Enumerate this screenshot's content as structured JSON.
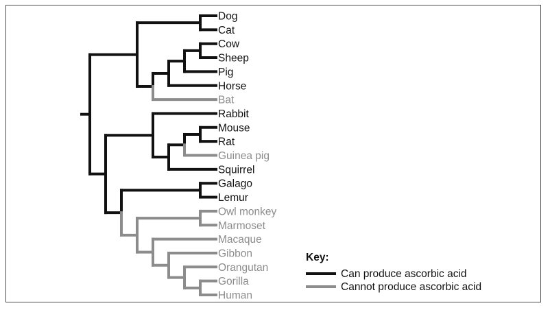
{
  "colors": {
    "can": "#111111",
    "cannot": "#8c8c8c"
  },
  "taxa": [
    {
      "name": "Dog",
      "can": true
    },
    {
      "name": "Cat",
      "can": true
    },
    {
      "name": "Cow",
      "can": true
    },
    {
      "name": "Sheep",
      "can": true
    },
    {
      "name": "Pig",
      "can": true
    },
    {
      "name": "Horse",
      "can": true
    },
    {
      "name": "Bat",
      "can": false
    },
    {
      "name": "Rabbit",
      "can": true
    },
    {
      "name": "Mouse",
      "can": true
    },
    {
      "name": "Rat",
      "can": true
    },
    {
      "name": "Guinea pig",
      "can": false
    },
    {
      "name": "Squirrel",
      "can": true
    },
    {
      "name": "Galago",
      "can": true
    },
    {
      "name": "Lemur",
      "can": true
    },
    {
      "name": "Owl monkey",
      "can": false
    },
    {
      "name": "Marmoset",
      "can": false
    },
    {
      "name": "Macaque",
      "can": false
    },
    {
      "name": "Gibbon",
      "can": false
    },
    {
      "name": "Orangutan",
      "can": false
    },
    {
      "name": "Gorilla",
      "can": false
    },
    {
      "name": "Human",
      "can": false
    }
  ],
  "tree": {
    "can": true,
    "children": [
      {
        "can": true,
        "children": [
          {
            "can": true,
            "children": [
              {
                "leaf": "Dog"
              },
              {
                "leaf": "Cat"
              }
            ]
          },
          {
            "can": true,
            "children": [
              {
                "can": true,
                "children": [
                  {
                    "can": true,
                    "children": [
                      {
                        "can": true,
                        "children": [
                          {
                            "leaf": "Cow"
                          },
                          {
                            "leaf": "Sheep"
                          }
                        ]
                      },
                      {
                        "leaf": "Pig"
                      }
                    ]
                  },
                  {
                    "leaf": "Horse"
                  }
                ]
              },
              {
                "leaf": "Bat"
              }
            ]
          }
        ]
      },
      {
        "can": true,
        "children": [
          {
            "can": true,
            "children": [
              {
                "leaf": "Rabbit"
              },
              {
                "can": true,
                "children": [
                  {
                    "can": true,
                    "children": [
                      {
                        "can": true,
                        "children": [
                          {
                            "leaf": "Mouse"
                          },
                          {
                            "leaf": "Rat"
                          }
                        ]
                      },
                      {
                        "leaf": "Guinea pig"
                      }
                    ]
                  },
                  {
                    "leaf": "Squirrel"
                  }
                ]
              }
            ]
          },
          {
            "can": true,
            "children": [
              {
                "can": true,
                "children": [
                  {
                    "leaf": "Galago"
                  },
                  {
                    "leaf": "Lemur"
                  }
                ]
              },
              {
                "can": false,
                "children": [
                  {
                    "can": false,
                    "children": [
                      {
                        "leaf": "Owl monkey"
                      },
                      {
                        "leaf": "Marmoset"
                      }
                    ]
                  },
                  {
                    "can": false,
                    "children": [
                      {
                        "leaf": "Macaque"
                      },
                      {
                        "can": false,
                        "children": [
                          {
                            "leaf": "Gibbon"
                          },
                          {
                            "can": false,
                            "children": [
                              {
                                "leaf": "Orangutan"
                              },
                              {
                                "can": false,
                                "children": [
                                  {
                                    "leaf": "Gorilla"
                                  },
                                  {
                                    "leaf": "Human"
                                  }
                                ]
                              }
                            ]
                          }
                        ]
                      }
                    ]
                  }
                ]
              }
            ]
          }
        ]
      }
    ]
  },
  "legend": {
    "title": "Key:",
    "items": [
      {
        "label": "Can produce ascorbic acid",
        "can": true
      },
      {
        "label": "Cannot produce ascorbic acid",
        "can": false
      }
    ]
  }
}
